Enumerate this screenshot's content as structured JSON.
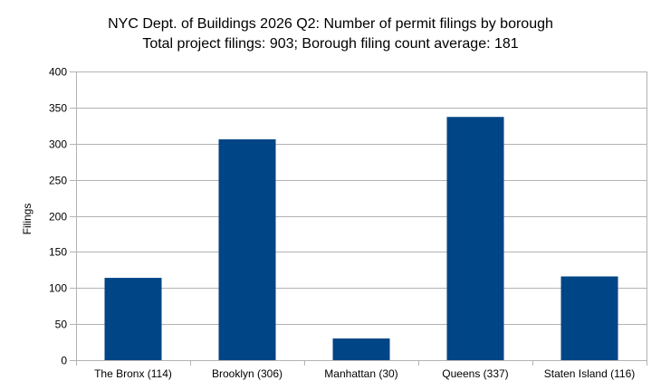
{
  "chart_data": {
    "type": "bar",
    "title_lines": [
      "NYC Dept. of Buildings 2026 Q2: Number of permit filings by borough",
      "Total project filings: 903; Borough filing count average: 181"
    ],
    "xlabel": "",
    "ylabel": "Filings",
    "categories": [
      "The Bronx (114)",
      "Brooklyn (306)",
      "Manhattan (30)",
      "Queens (337)",
      "Staten Island (116)"
    ],
    "values": [
      114,
      306,
      30,
      337,
      116
    ],
    "ylim": [
      0,
      400
    ],
    "yticks": [
      "0",
      "50",
      "100",
      "150",
      "200",
      "250",
      "300",
      "350",
      "400"
    ],
    "grid": true,
    "legend": "none",
    "bar_color": "#004586",
    "grid_color": "#b3b3b3"
  }
}
